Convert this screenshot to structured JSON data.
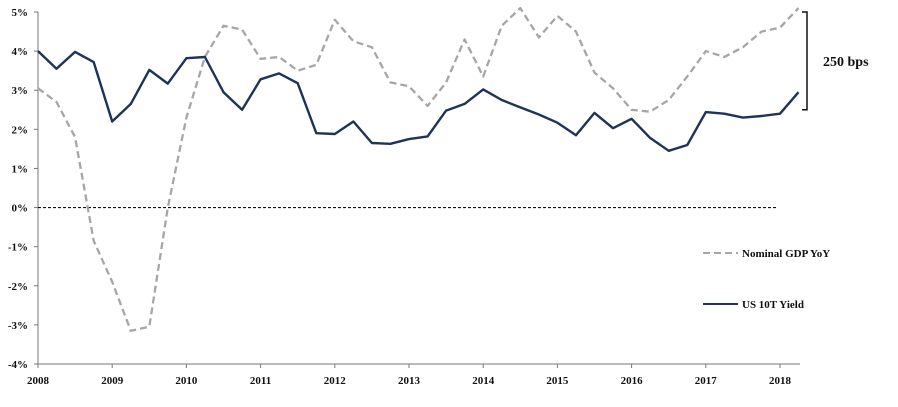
{
  "chart_data": {
    "type": "line",
    "title": "",
    "xlabel": "",
    "ylabel": "",
    "xlim": [
      2008,
      2018.3
    ],
    "ylim": [
      -4,
      5
    ],
    "x_ticks": [
      "2008",
      "2009",
      "2010",
      "2011",
      "2012",
      "2013",
      "2014",
      "2015",
      "2016",
      "2017",
      "2018"
    ],
    "y_ticks": [
      "-4%",
      "-3%",
      "-2%",
      "-1%",
      "0%",
      "1%",
      "2%",
      "3%",
      "4%",
      "5%"
    ],
    "zero_line": "dashed",
    "grid": false,
    "legend_position": "right",
    "annotation": {
      "label": "250 bps",
      "from": 2.5,
      "to": 5.0
    },
    "series": [
      {
        "name": "Nominal GDP YoY",
        "style": "dashed",
        "color": "#a6a6a6",
        "points": [
          [
            2008.0,
            3.05
          ],
          [
            2008.25,
            2.7
          ],
          [
            2008.5,
            1.8
          ],
          [
            2008.75,
            -0.85
          ],
          [
            2009.0,
            -1.9
          ],
          [
            2009.25,
            -3.15
          ],
          [
            2009.5,
            -3.05
          ],
          [
            2009.75,
            0.0
          ],
          [
            2010.0,
            2.3
          ],
          [
            2010.25,
            3.85
          ],
          [
            2010.5,
            4.65
          ],
          [
            2010.75,
            4.55
          ],
          [
            2011.0,
            3.8
          ],
          [
            2011.25,
            3.85
          ],
          [
            2011.5,
            3.5
          ],
          [
            2011.75,
            3.65
          ],
          [
            2012.0,
            4.8
          ],
          [
            2012.25,
            4.25
          ],
          [
            2012.5,
            4.1
          ],
          [
            2012.75,
            3.2
          ],
          [
            2013.0,
            3.1
          ],
          [
            2013.25,
            2.6
          ],
          [
            2013.5,
            3.2
          ],
          [
            2013.75,
            4.3
          ],
          [
            2014.0,
            3.35
          ],
          [
            2014.25,
            4.65
          ],
          [
            2014.5,
            5.1
          ],
          [
            2014.75,
            4.35
          ],
          [
            2015.0,
            4.9
          ],
          [
            2015.25,
            4.5
          ],
          [
            2015.5,
            3.45
          ],
          [
            2015.75,
            3.05
          ],
          [
            2016.0,
            2.5
          ],
          [
            2016.25,
            2.45
          ],
          [
            2016.5,
            2.75
          ],
          [
            2016.75,
            3.35
          ],
          [
            2017.0,
            4.0
          ],
          [
            2017.25,
            3.85
          ],
          [
            2017.5,
            4.1
          ],
          [
            2017.75,
            4.5
          ],
          [
            2018.0,
            4.6
          ],
          [
            2018.25,
            5.1
          ]
        ]
      },
      {
        "name": "US 10T Yield",
        "style": "solid",
        "color": "#1f3358",
        "points": [
          [
            2008.0,
            4.0
          ],
          [
            2008.25,
            3.55
          ],
          [
            2008.5,
            3.98
          ],
          [
            2008.75,
            3.72
          ],
          [
            2009.0,
            2.2
          ],
          [
            2009.25,
            2.65
          ],
          [
            2009.5,
            3.52
          ],
          [
            2009.75,
            3.17
          ],
          [
            2010.0,
            3.82
          ],
          [
            2010.25,
            3.85
          ],
          [
            2010.5,
            2.95
          ],
          [
            2010.75,
            2.5
          ],
          [
            2011.0,
            3.28
          ],
          [
            2011.25,
            3.43
          ],
          [
            2011.5,
            3.18
          ],
          [
            2011.75,
            1.9
          ],
          [
            2012.0,
            1.88
          ],
          [
            2012.25,
            2.2
          ],
          [
            2012.5,
            1.65
          ],
          [
            2012.75,
            1.63
          ],
          [
            2013.0,
            1.75
          ],
          [
            2013.25,
            1.82
          ],
          [
            2013.5,
            2.48
          ],
          [
            2013.75,
            2.65
          ],
          [
            2014.0,
            3.02
          ],
          [
            2014.25,
            2.75
          ],
          [
            2014.5,
            2.56
          ],
          [
            2014.75,
            2.38
          ],
          [
            2015.0,
            2.17
          ],
          [
            2015.25,
            1.85
          ],
          [
            2015.5,
            2.42
          ],
          [
            2015.75,
            2.03
          ],
          [
            2016.0,
            2.27
          ],
          [
            2016.25,
            1.78
          ],
          [
            2016.5,
            1.45
          ],
          [
            2016.75,
            1.6
          ],
          [
            2017.0,
            2.44
          ],
          [
            2017.25,
            2.4
          ],
          [
            2017.5,
            2.3
          ],
          [
            2017.75,
            2.34
          ],
          [
            2018.0,
            2.4
          ],
          [
            2018.25,
            2.95
          ]
        ]
      }
    ]
  }
}
